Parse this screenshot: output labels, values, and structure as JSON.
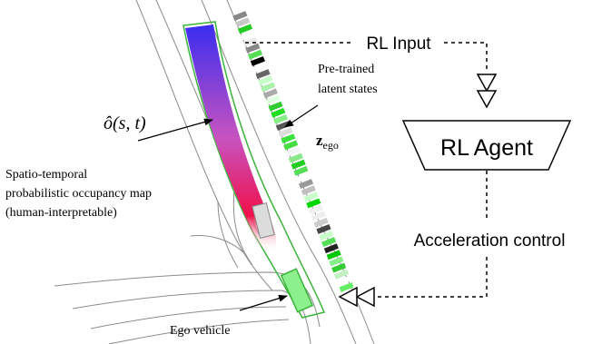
{
  "labels": {
    "rl_input": "RL Input",
    "rl_agent": "RL Agent",
    "acceleration_control": "Acceleration control",
    "pretrained_line1": "Pre-trained",
    "pretrained_line2": "latent states",
    "z_main": "z",
    "z_sub": "ego",
    "o_hat": "ô(s, t)",
    "occupancy_line1": "Spatio-temporal",
    "occupancy_line2": "probabilistic occupancy map",
    "occupancy_line3": "(human-interpretable)",
    "ego_vehicle": "Ego vehicle"
  },
  "colors": {
    "gradient_top": "#3a2df0",
    "gradient_mid": "#c853c0",
    "gradient_bottom": "#f0104a",
    "lane_outline": "#3cb43c",
    "ego_fill": "#8cf08c",
    "road_line": "#8c8c8c"
  },
  "latent_cells": [
    "#888888",
    "#c8c8c8",
    "#22cc22",
    "#ffffff",
    "#eaeaea",
    "#888888",
    "#55dd55",
    "#000000",
    "#ffffff",
    "#666666",
    "#c8ffc8",
    "#aaf0aa",
    "#aaaaaa",
    "#e0ffe0",
    "#33cc33",
    "#22dd22",
    "#88ee88",
    "#555555",
    "#dddddd",
    "#3ee03e",
    "#44dd44",
    "#f5f5f5",
    "#8ae88a",
    "#22cc22",
    "#55dd55",
    "#ffffff",
    "#999999",
    "#c0c0c0",
    "#c8ffc8",
    "#00d600",
    "#f0f0f0",
    "#eeeeee",
    "#cccccc",
    "#444444",
    "#c8ffc8",
    "#55dd55",
    "#222222",
    "#00c800",
    "#88ee88",
    "#33cc33",
    "#c0f0c0",
    "#ffffff",
    "#66ee66"
  ]
}
